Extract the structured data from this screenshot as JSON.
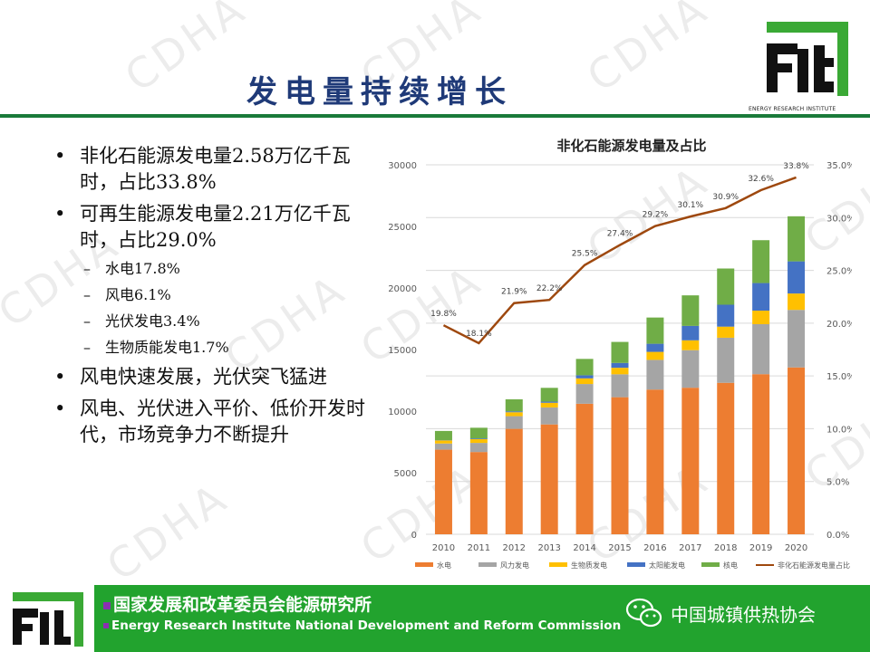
{
  "slide": {
    "title": "发电量持续增长",
    "watermark": "CDHA",
    "logo_sub": "ENERGY RESEARCH INSTITUTE"
  },
  "bullets": [
    {
      "level": 1,
      "text": "非化石能源发电量2.58万亿千瓦时，占比33.8%"
    },
    {
      "level": 1,
      "text": "可再生能源发电量2.21万亿千瓦时，占比29.0%"
    },
    {
      "level": 2,
      "text": "水电17.8%"
    },
    {
      "level": 2,
      "text": "风电6.1%"
    },
    {
      "level": 2,
      "text": "光伏发电3.4%"
    },
    {
      "level": 2,
      "text": "生物质能发电1.7%"
    },
    {
      "level": 1,
      "text": "风电快速发展，光伏突飞猛进"
    },
    {
      "level": 1,
      "text": "风电、光伏进入平价、低价开发时代，市场竞争力不断提升"
    }
  ],
  "footer": {
    "cn": "国家发展和改革委员会能源研究所",
    "en": "Energy Research Institute National Development and Reform Commission",
    "org": "中国城镇供热协会"
  },
  "colors": {
    "hydro": "#ed7d31",
    "wind": "#a5a5a5",
    "biomass": "#ffc000",
    "solar": "#4472c4",
    "nuclear": "#70ad47",
    "share": "#9e480e",
    "title": "#1f3a78",
    "footer": "#22a32e"
  },
  "chart_data": {
    "type": "bar",
    "stacked": true,
    "title": "非化石能源发电量及占比",
    "categories": [
      "2010",
      "2011",
      "2012",
      "2013",
      "2014",
      "2015",
      "2016",
      "2017",
      "2018",
      "2019",
      "2020"
    ],
    "ylim": [
      0,
      30000
    ],
    "yticks": [
      "0",
      "5000",
      "10000",
      "15000",
      "20000",
      "25000",
      "30000"
    ],
    "y2lim": [
      0,
      35
    ],
    "y2ticks": [
      "0.0%",
      "5.0%",
      "10.0%",
      "15.0%",
      "20.0%",
      "25.0%",
      "30.0%",
      "35.0%"
    ],
    "series": [
      {
        "name": "水电",
        "values": [
          6870,
          6680,
          8560,
          8920,
          10600,
          11130,
          11750,
          11900,
          12300,
          13000,
          13550
        ]
      },
      {
        "name": "风力发电",
        "values": [
          500,
          740,
          1030,
          1380,
          1600,
          1860,
          2410,
          3050,
          3660,
          4060,
          4670
        ]
      },
      {
        "name": "生物质发电",
        "values": [
          250,
          300,
          320,
          380,
          460,
          530,
          650,
          800,
          900,
          1100,
          1330
        ]
      },
      {
        "name": "太阳能发电",
        "values": [
          20,
          60,
          70,
          90,
          250,
          390,
          660,
          1170,
          1780,
          2240,
          2610
        ]
      },
      {
        "name": "核电",
        "values": [
          750,
          870,
          980,
          1120,
          1330,
          1710,
          2130,
          2480,
          2940,
          3480,
          3660
        ]
      }
    ],
    "line": {
      "name": "非化石能源发电量占比",
      "values": [
        19.8,
        18.1,
        21.9,
        22.2,
        25.5,
        27.4,
        29.2,
        30.1,
        30.9,
        32.6,
        33.8
      ],
      "labels": [
        "19.8%",
        "18.1%",
        "21.9%",
        "22.2%",
        "25.5%",
        "27.4%",
        "29.2%",
        "30.1%",
        "30.9%",
        "32.6%",
        "33.8%"
      ]
    }
  }
}
